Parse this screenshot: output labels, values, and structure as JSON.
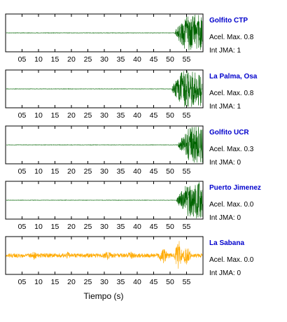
{
  "chart_data": {
    "type": "line",
    "xlabel": "Tiempo (s)",
    "xlim": [
      0,
      60
    ],
    "x_ticks": [
      "05",
      "10",
      "15",
      "20",
      "25",
      "30",
      "35",
      "40",
      "45",
      "50",
      "55"
    ],
    "panels": [
      {
        "station": "Golfito CTP",
        "accel_label": "Acel. Max. 0.8",
        "int_label": "Int JMA: 1",
        "color": "#006400",
        "onset_s": 51.5
      },
      {
        "station": "La Palma, Osa",
        "accel_label": "Acel. Max. 0.8",
        "int_label": "Int JMA: 1",
        "color": "#006400",
        "onset_s": 50.5
      },
      {
        "station": "Golfito UCR",
        "accel_label": "Acel. Max. 0.3",
        "int_label": "Int JMA: 0",
        "color": "#006400",
        "onset_s": 52.5
      },
      {
        "station": "Puerto Jimenez",
        "accel_label": "Acel. Max. 0.0",
        "int_label": "Int JMA: 0",
        "color": "#006400",
        "onset_s": 52.0
      },
      {
        "station": "La Sabana",
        "accel_label": "Acel. Max. 0.0",
        "int_label": "Int JMA: 0",
        "color": "#ffaa00",
        "onset_s": 0
      }
    ]
  }
}
